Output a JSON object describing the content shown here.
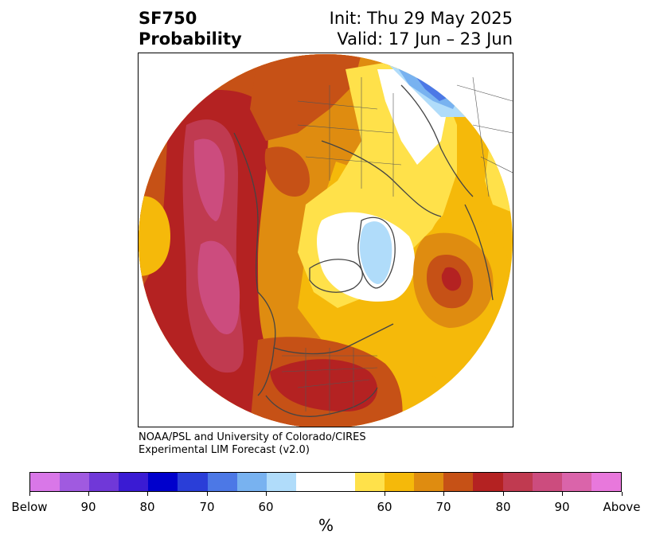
{
  "header": {
    "title_line1": "SF750",
    "title_line2": "Probability",
    "init": "Init: Thu 29 May 2025",
    "valid": "Valid: 17 Jun – 23 Jun"
  },
  "credit": {
    "line1": "NOAA/PSL and University of Colorado/CIRES",
    "line2": "Experimental LIM Forecast (v2.0)"
  },
  "colorbar": {
    "colors": [
      "#d977e8",
      "#a05ae0",
      "#7038d8",
      "#3a1bd3",
      "#0000cc",
      "#2a3ed8",
      "#4c78e6",
      "#78b2f0",
      "#b0dcfa",
      "#ffffff",
      "#ffe14a",
      "#f5b90a",
      "#df8c10",
      "#c65116",
      "#b42222",
      "#c03a50",
      "#cc4c7e",
      "#da64aa",
      "#e878dc"
    ],
    "tick_labels": [
      "Below",
      "90",
      "80",
      "70",
      "60",
      "60",
      "70",
      "80",
      "90",
      "Above"
    ],
    "unit": "%"
  },
  "map": {
    "colors": {
      "yellow": "#ffe14a",
      "gold": "#f5b90a",
      "orange": "#df8c10",
      "dark_orange": "#c65116",
      "red": "#b42222",
      "crimson": "#c03a50",
      "pink": "#cc4c7e",
      "light_blue": "#b0dcfa",
      "mid_blue": "#78b2f0",
      "blue": "#4c78e6"
    }
  }
}
